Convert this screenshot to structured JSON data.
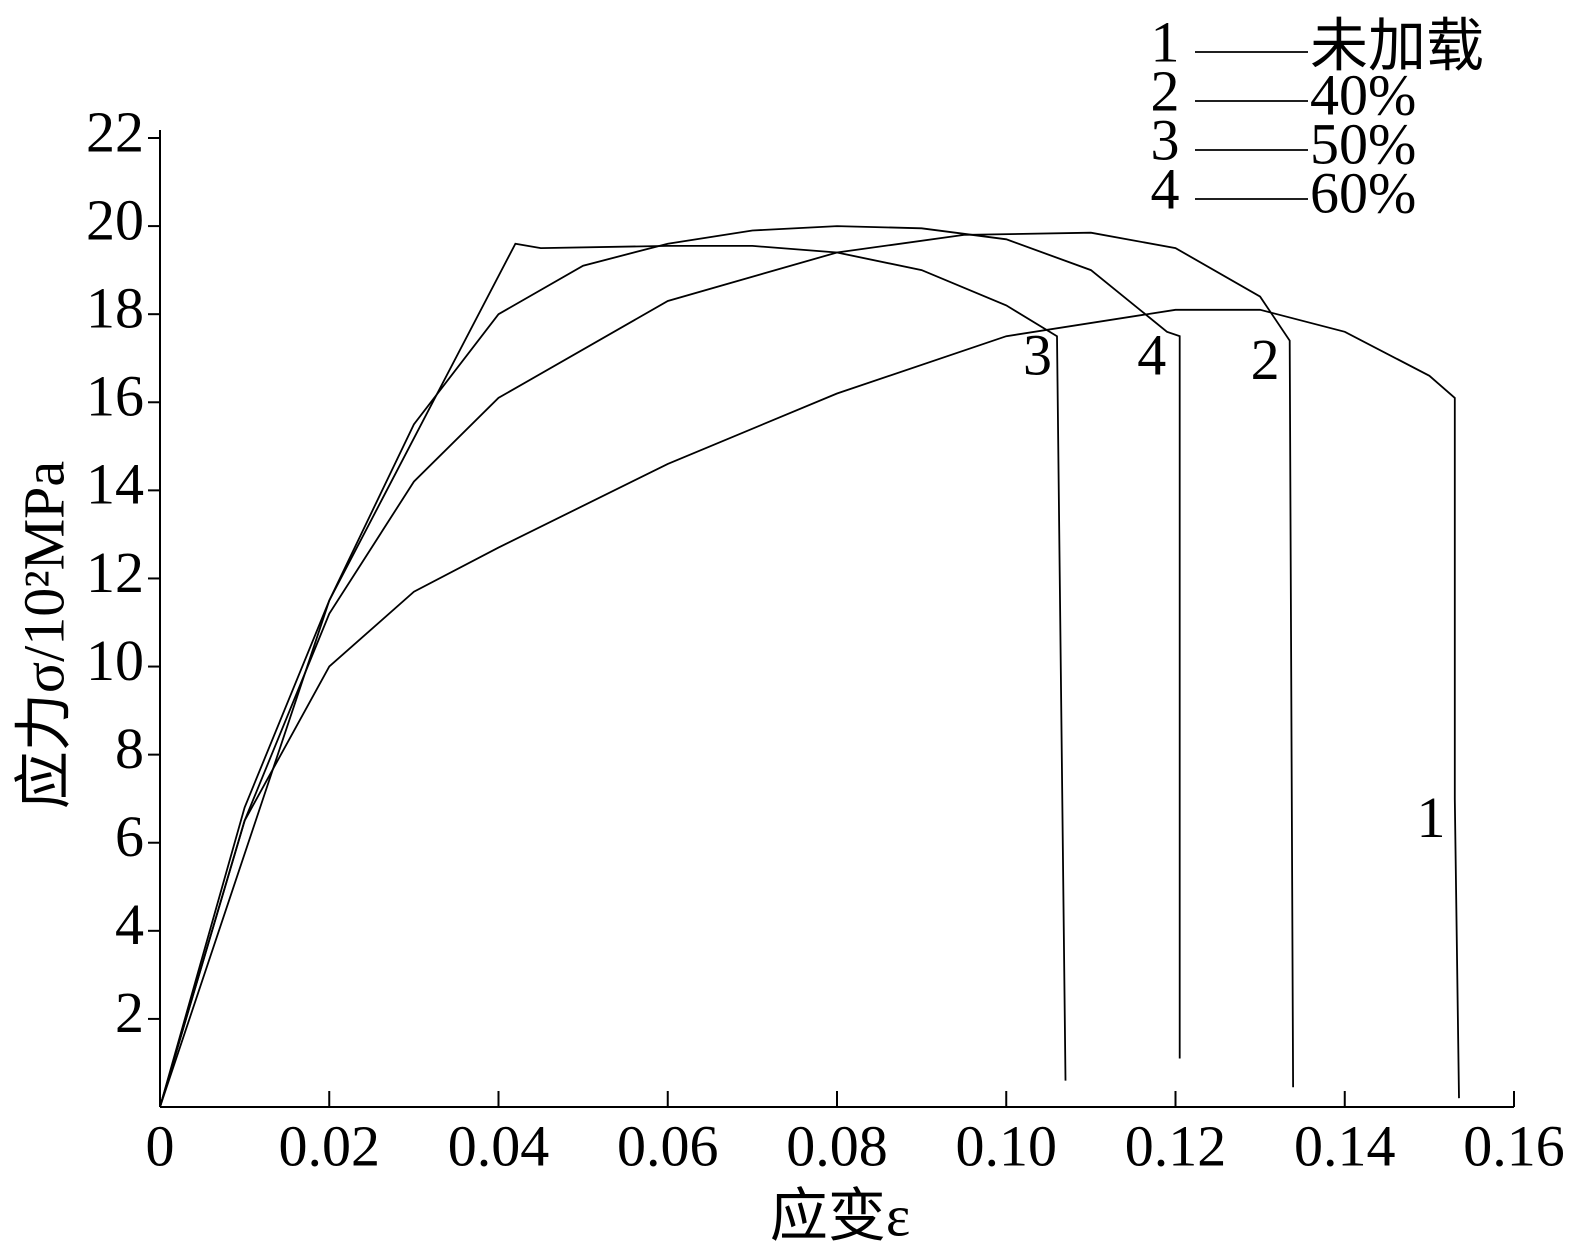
{
  "chart_data": {
    "type": "line",
    "x_label": "应变ε",
    "y_label": "应力σ/10²MPa",
    "xlim": [
      0,
      0.16
    ],
    "ylim": [
      0,
      22
    ],
    "xticks": [
      0,
      0.02,
      0.04,
      0.06,
      0.08,
      {
        "value": 0.1,
        "label": "0.10"
      },
      0.12,
      0.14,
      0.16
    ],
    "yticks": [
      2,
      4,
      6,
      8,
      10,
      12,
      14,
      16,
      18,
      20,
      22
    ],
    "grid": false,
    "legend": "top-right",
    "series": [
      {
        "label": "1",
        "name": "未加载",
        "color": "#000000",
        "x": [
          0,
          0.01,
          0.02,
          0.03,
          0.04,
          0.06,
          0.08,
          0.1,
          0.12,
          0.13,
          0.14,
          0.15,
          0.153,
          0.153,
          0.1535
        ],
        "values": [
          0,
          6.5,
          10,
          11.7,
          12.7,
          14.6,
          16.2,
          17.5,
          18.1,
          18.1,
          17.6,
          16.6,
          16.1,
          7,
          0.2
        ]
      },
      {
        "label": "2",
        "name": "40%",
        "color": "#000000",
        "x": [
          0,
          0.01,
          0.02,
          0.03,
          0.04,
          0.06,
          0.08,
          0.095,
          0.11,
          0.12,
          0.13,
          0.1335,
          0.1339
        ],
        "values": [
          0,
          6.5,
          11.2,
          14.2,
          16.1,
          18.3,
          19.4,
          19.8,
          19.85,
          19.5,
          18.4,
          17.4,
          0.45
        ]
      },
      {
        "label": "3",
        "name": "50%",
        "color": "#000000",
        "x": [
          0,
          0.02,
          0.042,
          0.045,
          0.06,
          0.07,
          0.08,
          0.09,
          0.1,
          0.106,
          0.107
        ],
        "values": [
          0,
          11.5,
          19.6,
          19.5,
          19.55,
          19.55,
          19.4,
          19.0,
          18.2,
          17.5,
          0.6
        ]
      },
      {
        "label": "4",
        "name": "60%",
        "color": "#000000",
        "x": [
          0,
          0.01,
          0.02,
          0.03,
          0.04,
          0.05,
          0.06,
          0.07,
          0.08,
          0.09,
          0.1,
          0.11,
          0.119,
          0.1205,
          0.1205
        ],
        "values": [
          0,
          6.8,
          11.5,
          15.5,
          18.0,
          19.1,
          19.6,
          19.9,
          20.0,
          19.95,
          19.7,
          19.0,
          17.6,
          17.5,
          1.1
        ]
      }
    ]
  }
}
